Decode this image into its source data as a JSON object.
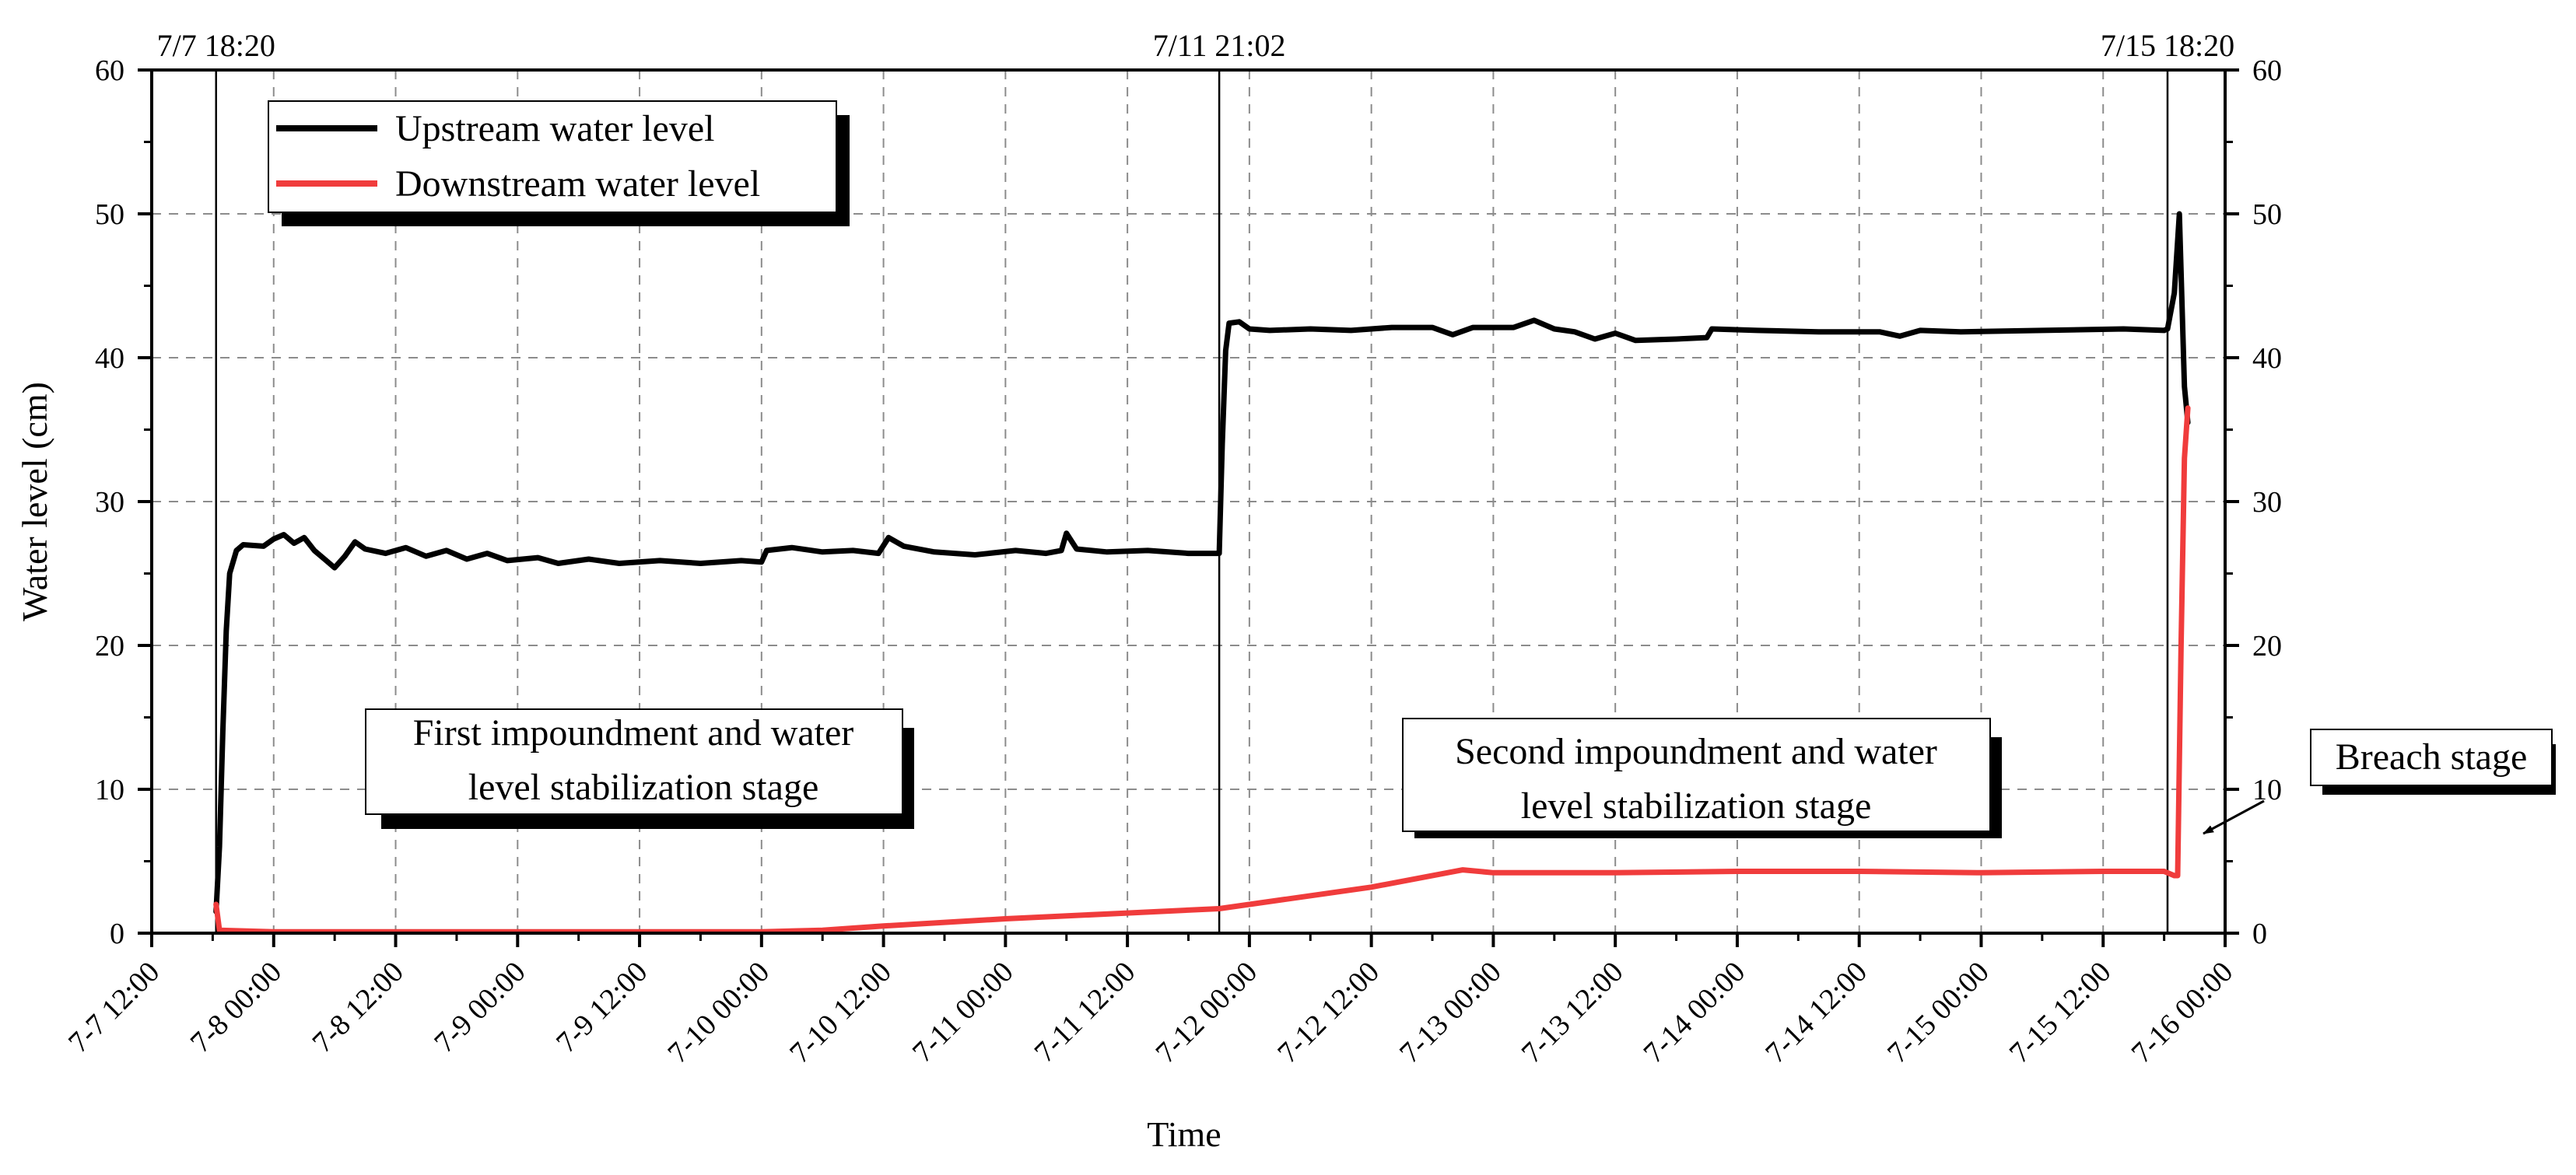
{
  "chart_data": {
    "type": "line",
    "title": "",
    "xlabel": "Time",
    "ylabel": "Water level (cm)",
    "x_unit": "datetime",
    "xlim": [
      "2023-07-07T12:00",
      "2023-07-16T00:00"
    ],
    "ylim": [
      0,
      60
    ],
    "y_ticks": [
      0,
      10,
      20,
      30,
      40,
      50,
      60
    ],
    "y_tick_labels": [
      "0",
      "10",
      "20",
      "30",
      "40",
      "50",
      "60"
    ],
    "x_ticks": [
      "2023-07-07T12:00",
      "2023-07-08T00:00",
      "2023-07-08T12:00",
      "2023-07-09T00:00",
      "2023-07-09T12:00",
      "2023-07-10T00:00",
      "2023-07-10T12:00",
      "2023-07-11T00:00",
      "2023-07-11T12:00",
      "2023-07-12T00:00",
      "2023-07-12T12:00",
      "2023-07-13T00:00",
      "2023-07-13T12:00",
      "2023-07-14T00:00",
      "2023-07-14T12:00",
      "2023-07-15T00:00",
      "2023-07-15T12:00",
      "2023-07-16T00:00"
    ],
    "x_tick_labels": [
      "7-7 12:00",
      "7-8 00:00",
      "7-8 12:00",
      "7-9 00:00",
      "7-9 12:00",
      "7-10 00:00",
      "7-10 12:00",
      "7-11 00:00",
      "7-11 12:00",
      "7-12 00:00",
      "7-12 12:00",
      "7-13 00:00",
      "7-13 12:00",
      "7-14 00:00",
      "7-14 12:00",
      "7-15 00:00",
      "7-15 12:00",
      "7-16 00:00"
    ],
    "grid": true,
    "legend_position": "top-left",
    "series": [
      {
        "name": "Upstream water level",
        "color": "#000000",
        "points": [
          [
            "2023-07-07T18:20",
            1.5
          ],
          [
            "2023-07-07T18:40",
            6
          ],
          [
            "2023-07-07T19:00",
            14
          ],
          [
            "2023-07-07T19:20",
            21
          ],
          [
            "2023-07-07T19:40",
            25
          ],
          [
            "2023-07-07T20:20",
            26.6
          ],
          [
            "2023-07-07T21:00",
            27.0
          ],
          [
            "2023-07-07T23:00",
            26.9
          ],
          [
            "2023-07-08T00:00",
            27.4
          ],
          [
            "2023-07-08T01:00",
            27.7
          ],
          [
            "2023-07-08T02:00",
            27.1
          ],
          [
            "2023-07-08T03:00",
            27.5
          ],
          [
            "2023-07-08T04:00",
            26.6
          ],
          [
            "2023-07-08T05:00",
            26.0
          ],
          [
            "2023-07-08T06:00",
            25.4
          ],
          [
            "2023-07-08T07:00",
            26.2
          ],
          [
            "2023-07-08T08:00",
            27.2
          ],
          [
            "2023-07-08T09:00",
            26.7
          ],
          [
            "2023-07-08T11:00",
            26.4
          ],
          [
            "2023-07-08T13:00",
            26.8
          ],
          [
            "2023-07-08T15:00",
            26.2
          ],
          [
            "2023-07-08T17:00",
            26.6
          ],
          [
            "2023-07-08T19:00",
            26.0
          ],
          [
            "2023-07-08T21:00",
            26.4
          ],
          [
            "2023-07-08T23:00",
            25.9
          ],
          [
            "2023-07-09T02:00",
            26.1
          ],
          [
            "2023-07-09T04:00",
            25.7
          ],
          [
            "2023-07-09T07:00",
            26.0
          ],
          [
            "2023-07-09T10:00",
            25.7
          ],
          [
            "2023-07-09T14:00",
            25.9
          ],
          [
            "2023-07-09T18:00",
            25.7
          ],
          [
            "2023-07-09T22:00",
            25.9
          ],
          [
            "2023-07-10T00:00",
            25.8
          ],
          [
            "2023-07-10T00:30",
            26.6
          ],
          [
            "2023-07-10T03:00",
            26.8
          ],
          [
            "2023-07-10T06:00",
            26.5
          ],
          [
            "2023-07-10T09:00",
            26.6
          ],
          [
            "2023-07-10T11:30",
            26.4
          ],
          [
            "2023-07-10T12:30",
            27.5
          ],
          [
            "2023-07-10T14:00",
            26.9
          ],
          [
            "2023-07-10T17:00",
            26.5
          ],
          [
            "2023-07-10T21:00",
            26.3
          ],
          [
            "2023-07-11T01:00",
            26.6
          ],
          [
            "2023-07-11T04:00",
            26.4
          ],
          [
            "2023-07-11T05:30",
            26.6
          ],
          [
            "2023-07-11T06:00",
            27.8
          ],
          [
            "2023-07-11T07:00",
            26.7
          ],
          [
            "2023-07-11T10:00",
            26.5
          ],
          [
            "2023-07-11T14:00",
            26.6
          ],
          [
            "2023-07-11T18:00",
            26.4
          ],
          [
            "2023-07-11T21:00",
            26.4
          ],
          [
            "2023-07-11T21:02",
            26.4
          ],
          [
            "2023-07-11T21:20",
            34.0
          ],
          [
            "2023-07-11T21:40",
            40.5
          ],
          [
            "2023-07-11T22:00",
            42.4
          ],
          [
            "2023-07-11T23:00",
            42.5
          ],
          [
            "2023-07-12T00:00",
            42.0
          ],
          [
            "2023-07-12T02:00",
            41.9
          ],
          [
            "2023-07-12T06:00",
            42.0
          ],
          [
            "2023-07-12T10:00",
            41.9
          ],
          [
            "2023-07-12T14:00",
            42.1
          ],
          [
            "2023-07-12T18:00",
            42.1
          ],
          [
            "2023-07-12T20:00",
            41.6
          ],
          [
            "2023-07-12T22:00",
            42.1
          ],
          [
            "2023-07-13T02:00",
            42.1
          ],
          [
            "2023-07-13T04:00",
            42.6
          ],
          [
            "2023-07-13T06:00",
            42.0
          ],
          [
            "2023-07-13T08:00",
            41.8
          ],
          [
            "2023-07-13T10:00",
            41.3
          ],
          [
            "2023-07-13T12:00",
            41.7
          ],
          [
            "2023-07-13T14:00",
            41.2
          ],
          [
            "2023-07-13T18:00",
            41.3
          ],
          [
            "2023-07-13T21:00",
            41.4
          ],
          [
            "2023-07-13T21:30",
            42.0
          ],
          [
            "2023-07-14T02:00",
            41.9
          ],
          [
            "2023-07-14T08:00",
            41.8
          ],
          [
            "2023-07-14T14:00",
            41.8
          ],
          [
            "2023-07-14T16:00",
            41.5
          ],
          [
            "2023-07-14T18:00",
            41.9
          ],
          [
            "2023-07-14T22:00",
            41.8
          ],
          [
            "2023-07-15T06:00",
            41.9
          ],
          [
            "2023-07-15T14:00",
            42.0
          ],
          [
            "2023-07-15T18:00",
            41.9
          ],
          [
            "2023-07-15T18:20",
            42.0
          ],
          [
            "2023-07-15T19:00",
            44.5
          ],
          [
            "2023-07-15T19:30",
            50.0
          ],
          [
            "2023-07-15T20:00",
            38.0
          ],
          [
            "2023-07-15T20:20",
            35.5
          ]
        ]
      },
      {
        "name": "Downstream water level",
        "color": "#f03c3c",
        "points": [
          [
            "2023-07-07T18:20",
            2.0
          ],
          [
            "2023-07-07T18:40",
            0.2
          ],
          [
            "2023-07-08T00:00",
            0.1
          ],
          [
            "2023-07-09T00:00",
            0.1
          ],
          [
            "2023-07-10T00:00",
            0.1
          ],
          [
            "2023-07-10T06:00",
            0.2
          ],
          [
            "2023-07-10T12:00",
            0.5
          ],
          [
            "2023-07-11T00:00",
            1.0
          ],
          [
            "2023-07-11T12:00",
            1.4
          ],
          [
            "2023-07-11T21:02",
            1.7
          ],
          [
            "2023-07-12T00:00",
            2.0
          ],
          [
            "2023-07-12T12:00",
            3.2
          ],
          [
            "2023-07-12T21:00",
            4.4
          ],
          [
            "2023-07-13T00:00",
            4.2
          ],
          [
            "2023-07-13T12:00",
            4.2
          ],
          [
            "2023-07-14T00:00",
            4.3
          ],
          [
            "2023-07-14T12:00",
            4.3
          ],
          [
            "2023-07-15T00:00",
            4.2
          ],
          [
            "2023-07-15T12:00",
            4.3
          ],
          [
            "2023-07-15T18:00",
            4.3
          ],
          [
            "2023-07-15T19:00",
            4.0
          ],
          [
            "2023-07-15T19:20",
            4.0
          ],
          [
            "2023-07-15T19:40",
            20.0
          ],
          [
            "2023-07-15T20:00",
            33.0
          ],
          [
            "2023-07-15T20:20",
            36.5
          ]
        ]
      }
    ],
    "reference_lines": [
      {
        "x": "2023-07-07T18:20",
        "label": "7/7 18:20"
      },
      {
        "x": "2023-07-11T21:02",
        "label": "7/11 21:02"
      },
      {
        "x": "2023-07-15T18:20",
        "label": "7/15 18:20"
      }
    ],
    "annotations": [
      {
        "lines": [
          "First impoundment and water",
          "level stabilization stage"
        ]
      },
      {
        "lines": [
          "Second impoundment and water",
          "level stabilization stage"
        ]
      },
      {
        "lines": [
          "Breach stage"
        ]
      }
    ]
  }
}
